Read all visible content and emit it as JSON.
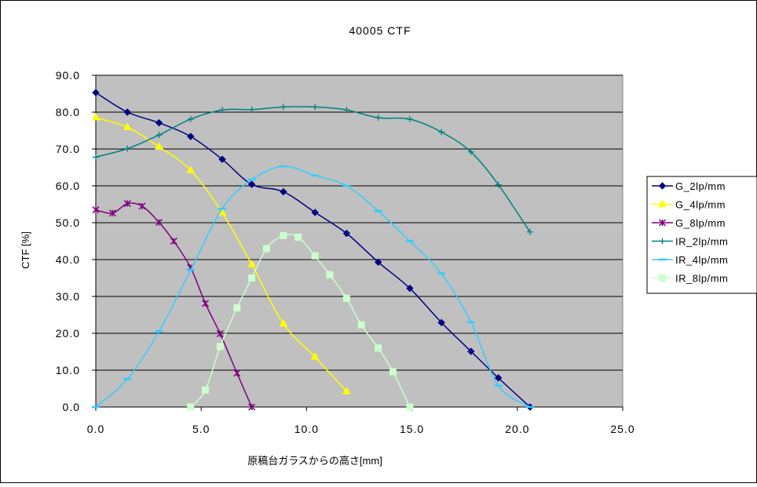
{
  "chart_data": {
    "type": "line",
    "title": "40005 CTF",
    "xlabel": "原稿台ガラスからの高さ[mm]",
    "ylabel": "CTF [%]",
    "xlim": [
      0,
      25
    ],
    "ylim": [
      0,
      90
    ],
    "x_ticks": [
      "0.0",
      "5.0",
      "10.0",
      "15.0",
      "20.0",
      "25.0"
    ],
    "y_ticks": [
      "0.0",
      "10.0",
      "20.0",
      "30.0",
      "40.0",
      "50.0",
      "60.0",
      "70.0",
      "80.0",
      "90.0"
    ],
    "grid": true,
    "plot_background": "#c0c0c0",
    "legend_position": "right",
    "series": [
      {
        "name": "G_2lp/mm",
        "color": "#000080",
        "marker": "diamond",
        "x": [
          0.0,
          1.5,
          3.0,
          4.5,
          6.0,
          7.4,
          8.9,
          10.4,
          11.9,
          13.4,
          14.9,
          16.4,
          17.8,
          19.1,
          20.6
        ],
        "y": [
          85.3,
          80.0,
          77.1,
          73.4,
          67.2,
          60.4,
          58.4,
          52.8,
          47.1,
          39.3,
          32.2,
          22.9,
          15.1,
          7.9,
          0.0
        ]
      },
      {
        "name": "G_4lp/mm",
        "color": "#ffff00",
        "marker": "triangle",
        "x": [
          0.0,
          1.5,
          3.0,
          4.5,
          6.0,
          7.4,
          8.9,
          10.4,
          11.9
        ],
        "y": [
          78.5,
          75.9,
          70.6,
          64.2,
          52.7,
          38.7,
          22.6,
          13.6,
          4.2
        ]
      },
      {
        "name": "G_8lp/mm",
        "color": "#800080",
        "marker": "star",
        "x": [
          0.0,
          0.8,
          1.5,
          2.2,
          3.0,
          3.7,
          4.5,
          5.2,
          5.9,
          6.7,
          7.4
        ],
        "y": [
          53.5,
          52.6,
          55.2,
          54.5,
          50.1,
          45.0,
          37.8,
          28.1,
          19.9,
          9.2,
          0.0
        ]
      },
      {
        "name": "IR_2lp/mm",
        "color": "#008080",
        "marker": "plus",
        "x": [
          0.0,
          1.5,
          3.0,
          4.5,
          6.0,
          7.4,
          8.9,
          10.4,
          11.9,
          13.4,
          14.9,
          16.4,
          17.8,
          19.1,
          20.6
        ],
        "y": [
          67.8,
          70.1,
          73.8,
          78.1,
          80.6,
          80.7,
          81.4,
          81.4,
          80.6,
          78.5,
          78.1,
          74.6,
          69.2,
          60.3,
          47.5
        ]
      },
      {
        "name": "IR_4lp/mm",
        "color": "#33ccff",
        "marker": "dash",
        "x": [
          0.0,
          1.5,
          3.0,
          4.5,
          6.0,
          7.4,
          8.9,
          10.4,
          11.9,
          13.4,
          14.9,
          16.4,
          17.8,
          19.1,
          20.6
        ],
        "y": [
          0.0,
          7.6,
          20.5,
          37.2,
          53.8,
          61.7,
          65.3,
          62.8,
          60.0,
          53.2,
          45.0,
          36.2,
          23.0,
          5.8,
          0.0
        ]
      },
      {
        "name": "IR_8lp/mm",
        "color": "#ccffcc",
        "marker": "square",
        "x": [
          4.5,
          5.2,
          5.9,
          6.7,
          7.4,
          8.1,
          8.9,
          9.6,
          10.4,
          11.1,
          11.9,
          12.6,
          13.4,
          14.1,
          14.9
        ],
        "y": [
          0.0,
          4.6,
          16.4,
          26.9,
          35.0,
          43.0,
          46.5,
          46.1,
          41.0,
          35.9,
          29.5,
          22.3,
          16.0,
          9.6,
          0.0
        ]
      }
    ]
  }
}
